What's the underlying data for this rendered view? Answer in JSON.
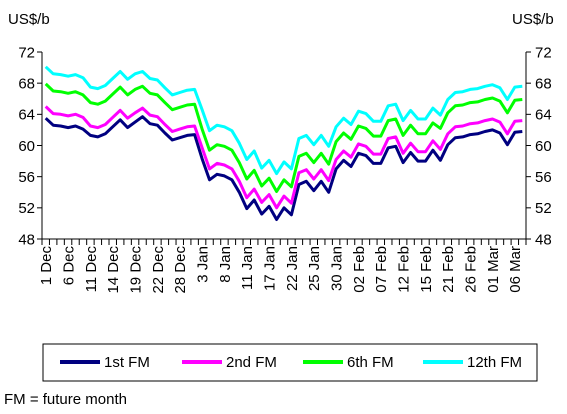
{
  "chart_data": {
    "type": "line",
    "ylabel_left": "US$/b",
    "ylabel_right": "US$/b",
    "ylim": [
      48,
      72
    ],
    "yticks": [
      48,
      52,
      56,
      60,
      64,
      68,
      72
    ],
    "grid": false,
    "legend": "bottom",
    "categories": [
      "1 Dec",
      "",
      "",
      "6 Dec",
      "",
      "",
      "11 Dec",
      "",
      "",
      "14 Dec",
      "",
      "",
      "19 Dec",
      "",
      "",
      "22 Dec",
      "",
      "",
      "28 Dec",
      "",
      "",
      "3 Jan",
      "",
      "",
      "8 Jan",
      "",
      "",
      "11 Jan",
      "",
      "",
      "17 Jan",
      "",
      "",
      "22 Jan",
      "",
      "",
      "25 Jan",
      "",
      "",
      "30 Jan",
      "",
      "",
      "02 Feb",
      "",
      "",
      "07 Feb",
      "",
      "",
      "12 Feb",
      "",
      "",
      "15 Feb",
      "",
      "",
      "21 Feb",
      "",
      "",
      "26 Feb",
      "",
      "",
      "01 Mar",
      "",
      "",
      "06 Mar",
      ""
    ],
    "series": [
      {
        "name": "1st FM",
        "color": "#000080",
        "values": [
          63.5,
          62.6,
          62.5,
          62.3,
          62.5,
          62.1,
          61.3,
          61.1,
          61.5,
          62.4,
          63.3,
          62.3,
          63.0,
          63.7,
          62.8,
          62.6,
          61.6,
          60.7,
          61.0,
          61.3,
          61.4,
          58.3,
          55.6,
          56.3,
          56.1,
          55.6,
          54.0,
          51.9,
          53.0,
          51.2,
          52.2,
          50.5,
          52.0,
          51.1,
          55.0,
          55.4,
          54.2,
          55.4,
          54.0,
          57.0,
          58.1,
          57.3,
          59.0,
          58.7,
          57.7,
          57.7,
          59.7,
          59.9,
          57.8,
          59.1,
          58.0,
          58.0,
          59.4,
          58.1,
          60.1,
          61.0,
          61.1,
          61.4,
          61.5,
          61.8,
          62.0,
          61.6,
          60.1,
          61.7,
          61.8
        ]
      },
      {
        "name": "2nd FM",
        "color": "#FF00FF",
        "values": [
          65.0,
          64.1,
          64.0,
          63.8,
          64.0,
          63.6,
          62.5,
          62.3,
          62.7,
          63.6,
          64.5,
          63.5,
          64.2,
          64.8,
          63.9,
          63.7,
          62.7,
          61.8,
          62.1,
          62.4,
          62.5,
          59.7,
          57.0,
          57.7,
          57.5,
          57.0,
          55.4,
          53.3,
          54.4,
          52.7,
          53.7,
          52.0,
          53.5,
          52.6,
          56.5,
          56.9,
          55.7,
          56.9,
          55.5,
          58.2,
          59.3,
          58.5,
          60.2,
          59.9,
          58.9,
          58.9,
          60.9,
          61.1,
          59.0,
          60.3,
          59.2,
          59.2,
          60.6,
          59.5,
          61.5,
          62.4,
          62.5,
          62.8,
          62.9,
          63.2,
          63.4,
          63.0,
          61.5,
          63.1,
          63.2
        ]
      },
      {
        "name": "6th FM",
        "color": "#00FF00",
        "values": [
          67.9,
          67.0,
          66.9,
          66.7,
          66.9,
          66.5,
          65.5,
          65.3,
          65.7,
          66.6,
          67.5,
          66.5,
          67.2,
          67.6,
          66.7,
          66.5,
          65.5,
          64.6,
          64.9,
          65.2,
          65.3,
          62.1,
          59.4,
          60.1,
          59.9,
          59.4,
          57.8,
          55.7,
          56.8,
          54.8,
          55.8,
          54.1,
          55.6,
          54.7,
          58.6,
          59.0,
          57.8,
          59.0,
          57.6,
          60.5,
          61.6,
          60.8,
          62.5,
          62.2,
          61.2,
          61.2,
          63.2,
          63.4,
          61.3,
          62.6,
          61.5,
          61.5,
          62.9,
          62.2,
          64.2,
          65.1,
          65.2,
          65.5,
          65.6,
          65.9,
          66.1,
          65.7,
          64.2,
          65.8,
          65.9
        ]
      },
      {
        "name": "12th FM",
        "color": "#00FFFF",
        "values": [
          70.1,
          69.2,
          69.1,
          68.9,
          69.1,
          68.7,
          67.5,
          67.3,
          67.7,
          68.6,
          69.5,
          68.5,
          69.2,
          69.5,
          68.6,
          68.4,
          67.4,
          66.5,
          66.8,
          67.1,
          67.2,
          64.6,
          61.9,
          62.6,
          62.4,
          61.9,
          60.3,
          58.2,
          59.3,
          57.1,
          58.1,
          56.4,
          57.9,
          57.0,
          60.9,
          61.3,
          60.1,
          61.3,
          59.9,
          62.4,
          63.5,
          62.7,
          64.4,
          64.1,
          63.1,
          63.1,
          65.1,
          65.3,
          63.2,
          64.5,
          63.4,
          63.4,
          64.8,
          63.9,
          65.9,
          66.8,
          66.9,
          67.2,
          67.3,
          67.6,
          67.8,
          67.4,
          65.9,
          67.5,
          67.6
        ]
      }
    ]
  },
  "footnote": "FM = future month"
}
